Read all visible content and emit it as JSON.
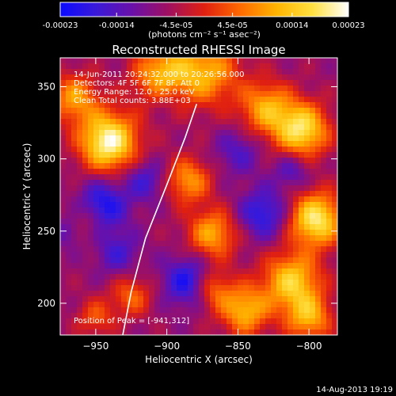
{
  "colorbar": {
    "ticks": [
      {
        "value": -0.00023,
        "label": "-0.00023"
      },
      {
        "value": -0.00014,
        "label": "-0.00014"
      },
      {
        "value": -4.5e-05,
        "label": "-4.5e-05"
      },
      {
        "value": 4.5e-05,
        "label": "4.5e-05"
      },
      {
        "value": 0.00014,
        "label": "0.00014"
      },
      {
        "value": 0.00023,
        "label": "0.00023"
      }
    ],
    "range": [
      -0.00023,
      0.00023
    ],
    "units_label": "(photons cm⁻² s⁻¹ asec⁻²)",
    "palette": [
      "#0a0aff",
      "#3a1ad8",
      "#6a10a8",
      "#a01060",
      "#e02010",
      "#ff6a00",
      "#ffb400",
      "#ffe040",
      "#ffffff"
    ]
  },
  "chart_data": {
    "type": "heatmap",
    "title": "Reconstructed RHESSI Image",
    "xlabel": "Heliocentric X (arcsec)",
    "ylabel": "Heliocentric Y (arcsec)",
    "xlim": [
      -975,
      -780
    ],
    "ylim": [
      178,
      370
    ],
    "x_ticks": [
      {
        "value": -950,
        "label": "−950"
      },
      {
        "value": -900,
        "label": "−900"
      },
      {
        "value": -850,
        "label": "−850"
      },
      {
        "value": -800,
        "label": "−800"
      }
    ],
    "y_ticks": [
      {
        "value": 200,
        "label": "200"
      },
      {
        "value": 250,
        "label": "250"
      },
      {
        "value": 300,
        "label": "300"
      },
      {
        "value": 350,
        "label": "350"
      }
    ],
    "limb_curve": [
      [
        -931,
        178
      ],
      [
        -925,
        208
      ],
      [
        -915,
        245
      ],
      [
        -900,
        282
      ],
      [
        -887,
        315
      ],
      [
        -879,
        338
      ]
    ],
    "peak_position": [
      -941,
      312
    ],
    "bright_sources": [
      {
        "x": -941,
        "y": 312,
        "amp": 1.0,
        "r": 14
      },
      {
        "x": -903,
        "y": 357,
        "amp": 0.7,
        "r": 14
      },
      {
        "x": -872,
        "y": 360,
        "amp": 0.6,
        "r": 16
      },
      {
        "x": -965,
        "y": 342,
        "amp": 0.55,
        "r": 12
      },
      {
        "x": -805,
        "y": 320,
        "amp": 0.85,
        "r": 13
      },
      {
        "x": -830,
        "y": 335,
        "amp": 0.6,
        "r": 13
      },
      {
        "x": -795,
        "y": 258,
        "amp": 0.9,
        "r": 13
      },
      {
        "x": -812,
        "y": 215,
        "amp": 0.75,
        "r": 14
      },
      {
        "x": -800,
        "y": 190,
        "amp": 0.6,
        "r": 11
      },
      {
        "x": -885,
        "y": 285,
        "amp": 0.55,
        "r": 11
      },
      {
        "x": -868,
        "y": 248,
        "amp": 0.6,
        "r": 12
      },
      {
        "x": -845,
        "y": 195,
        "amp": 0.65,
        "r": 12
      },
      {
        "x": -868,
        "y": 210,
        "amp": 0.45,
        "r": 10
      },
      {
        "x": -925,
        "y": 205,
        "amp": 0.4,
        "r": 10
      },
      {
        "x": -950,
        "y": 190,
        "amp": 0.35,
        "r": 9
      },
      {
        "x": -960,
        "y": 255,
        "amp": 0.3,
        "r": 10
      }
    ],
    "dark_sources": [
      {
        "x": -945,
        "y": 268,
        "amp": 0.9,
        "r": 12
      },
      {
        "x": -915,
        "y": 285,
        "amp": 0.6,
        "r": 10
      },
      {
        "x": -885,
        "y": 215,
        "amp": 0.9,
        "r": 12
      },
      {
        "x": -832,
        "y": 262,
        "amp": 0.8,
        "r": 12
      },
      {
        "x": -812,
        "y": 292,
        "amp": 0.5,
        "r": 9
      },
      {
        "x": -968,
        "y": 250,
        "amp": 0.6,
        "r": 8
      },
      {
        "x": -900,
        "y": 345,
        "amp": 0.4,
        "r": 10
      },
      {
        "x": -850,
        "y": 305,
        "amp": 0.5,
        "r": 11
      },
      {
        "x": -935,
        "y": 235,
        "amp": 0.55,
        "r": 11
      }
    ]
  },
  "annotations": {
    "time_range": "14-Jun-2011 20:24:32.000 to 20:26:56.000",
    "detectors": "Detectors: 4F 5F 6F 7F 8F, Att 0",
    "energy_range": "Energy Range: 12.0 - 25.0 keV",
    "clean": "Clean     Total counts: 3.88E+03",
    "peak": "Position of Peak = [-941,312]"
  },
  "footer": {
    "date": "14-Aug-2013 19:19"
  }
}
